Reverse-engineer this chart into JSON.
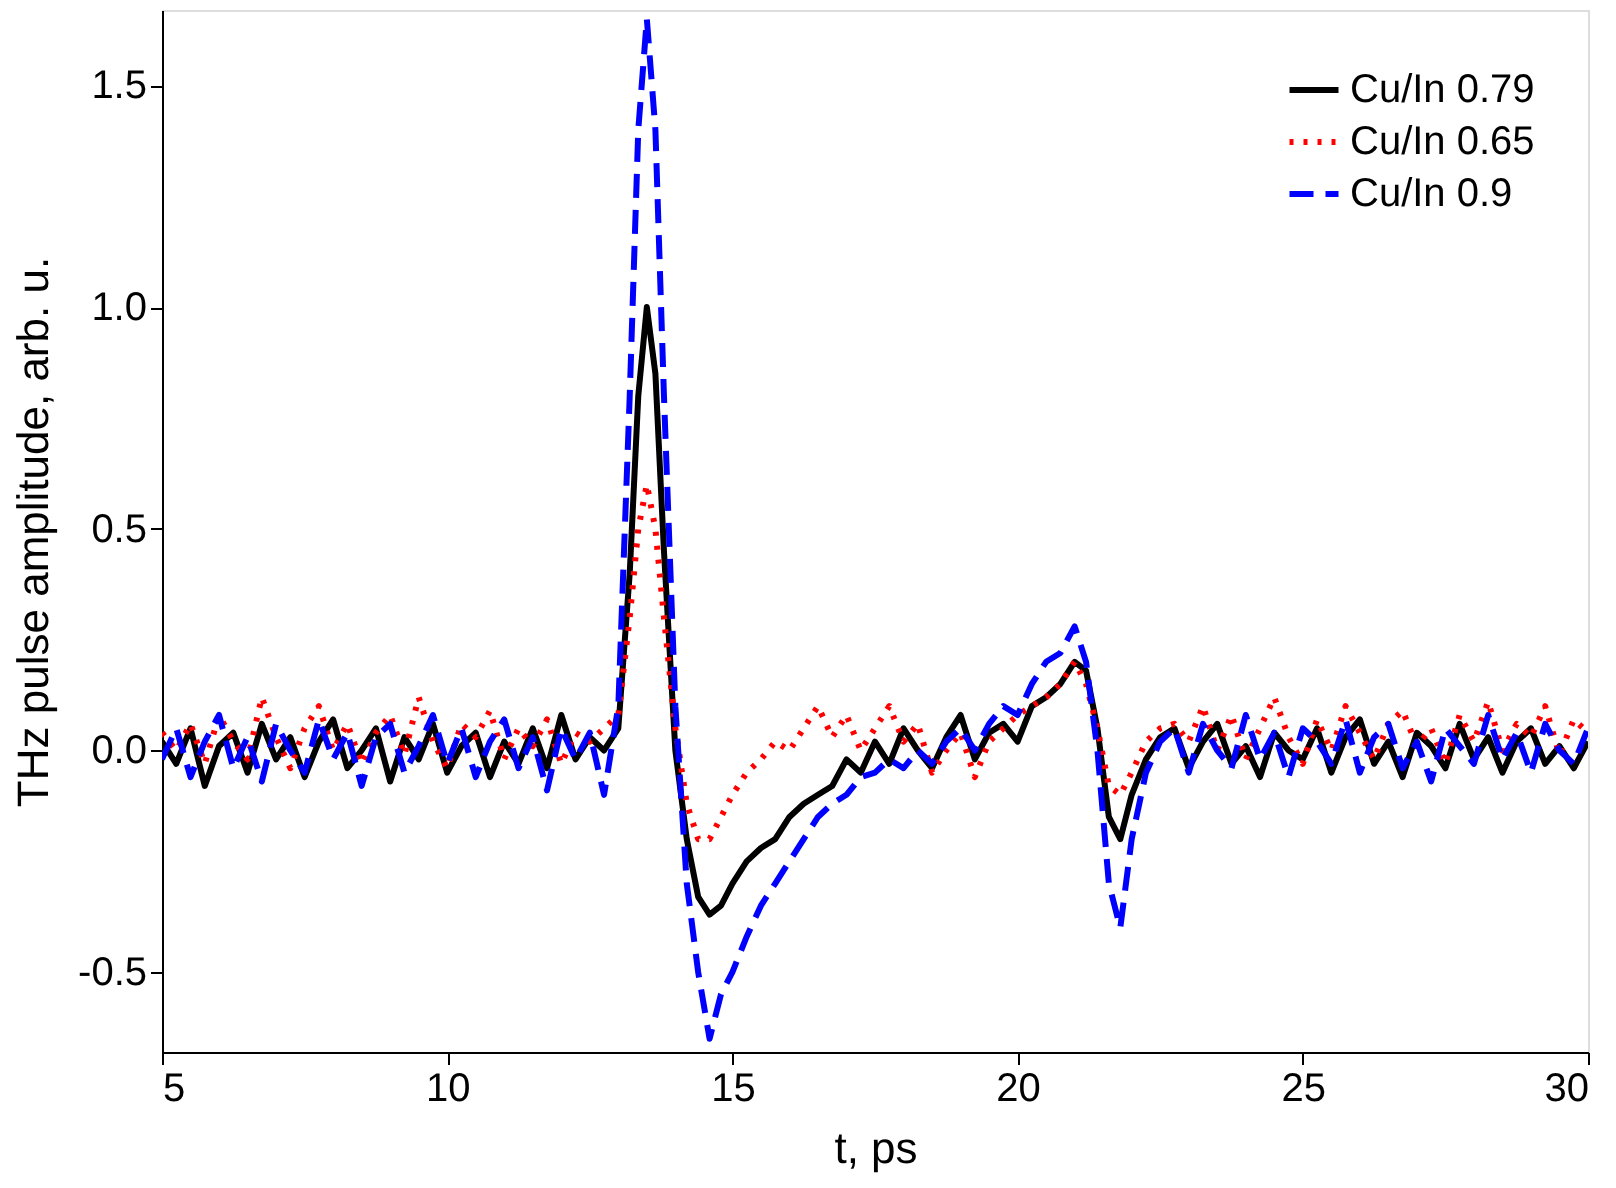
{
  "chart_data": {
    "type": "line",
    "xlabel": "t, ps",
    "ylabel": "THz pulse amplitude, arb. u.",
    "x": [
      5,
      5.25,
      5.5,
      5.75,
      6,
      6.25,
      6.5,
      6.75,
      7,
      7.25,
      7.5,
      7.75,
      8,
      8.25,
      8.5,
      8.75,
      9,
      9.25,
      9.5,
      9.75,
      10,
      10.25,
      10.5,
      10.75,
      11,
      11.25,
      11.5,
      11.75,
      12,
      12.25,
      12.5,
      12.75,
      13.0,
      13.2,
      13.35,
      13.5,
      13.65,
      13.8,
      14.0,
      14.2,
      14.4,
      14.6,
      14.8,
      15.0,
      15.25,
      15.5,
      15.75,
      16,
      16.25,
      16.5,
      16.75,
      17,
      17.25,
      17.5,
      17.75,
      18,
      18.25,
      18.5,
      18.75,
      19,
      19.25,
      19.5,
      19.75,
      20,
      20.25,
      20.5,
      20.75,
      21.0,
      21.2,
      21.4,
      21.6,
      21.8,
      22.0,
      22.25,
      22.5,
      22.75,
      23,
      23.25,
      23.5,
      23.75,
      24,
      24.25,
      24.5,
      24.75,
      25,
      25.25,
      25.5,
      25.75,
      26,
      26.25,
      26.5,
      26.75,
      27,
      27.25,
      27.5,
      27.75,
      28,
      28.25,
      28.5,
      28.75,
      29,
      29.25,
      29.5,
      29.75,
      30
    ],
    "series": [
      {
        "name": "Cu/In 0.79",
        "color": "#000000",
        "line_style": "solid",
        "values": [
          0.02,
          -0.03,
          0.05,
          -0.08,
          0.01,
          0.04,
          -0.05,
          0.06,
          -0.02,
          0.03,
          -0.06,
          0.02,
          0.07,
          -0.04,
          0.0,
          0.05,
          -0.07,
          0.03,
          -0.02,
          0.06,
          -0.05,
          0.01,
          0.04,
          -0.06,
          0.02,
          -0.03,
          0.05,
          -0.04,
          0.08,
          -0.02,
          0.03,
          0.0,
          0.05,
          0.4,
          0.8,
          1.0,
          0.85,
          0.45,
          0.0,
          -0.2,
          -0.33,
          -0.37,
          -0.35,
          -0.3,
          -0.25,
          -0.22,
          -0.2,
          -0.15,
          -0.12,
          -0.1,
          -0.08,
          -0.02,
          -0.05,
          0.02,
          -0.03,
          0.05,
          0.0,
          -0.04,
          0.03,
          0.08,
          -0.02,
          0.04,
          0.06,
          0.02,
          0.1,
          0.12,
          0.15,
          0.2,
          0.18,
          0.05,
          -0.15,
          -0.2,
          -0.1,
          -0.02,
          0.03,
          0.05,
          -0.04,
          0.02,
          0.06,
          -0.03,
          0.01,
          -0.06,
          0.04,
          0.0,
          -0.02,
          0.05,
          -0.05,
          0.03,
          0.07,
          -0.03,
          0.02,
          -0.06,
          0.04,
          0.01,
          -0.04,
          0.06,
          -0.02,
          0.03,
          -0.05,
          0.02,
          0.05,
          -0.03,
          0.01,
          -0.04,
          0.02
        ]
      },
      {
        "name": "Cu/In 0.65",
        "color": "#ff0000",
        "line_style": "dotted",
        "values": [
          0.04,
          0.0,
          0.06,
          -0.03,
          0.08,
          0.02,
          -0.02,
          0.12,
          0.03,
          -0.04,
          0.05,
          0.1,
          0.0,
          0.06,
          -0.03,
          0.04,
          0.08,
          -0.01,
          0.12,
          0.02,
          -0.04,
          0.06,
          0.03,
          0.09,
          -0.02,
          0.05,
          0.01,
          0.07,
          -0.03,
          0.04,
          0.02,
          0.05,
          0.08,
          0.3,
          0.5,
          0.6,
          0.5,
          0.3,
          0.05,
          -0.12,
          -0.2,
          -0.2,
          -0.15,
          -0.1,
          -0.05,
          -0.02,
          0.02,
          0.0,
          0.05,
          0.1,
          0.03,
          0.08,
          0.0,
          0.05,
          0.1,
          0.02,
          0.06,
          -0.05,
          0.0,
          0.04,
          -0.06,
          0.02,
          0.05,
          0.08,
          0.1,
          0.12,
          0.15,
          0.2,
          0.15,
          0.05,
          -0.08,
          -0.1,
          -0.05,
          0.02,
          0.05,
          0.06,
          0.02,
          0.1,
          0.0,
          0.08,
          -0.02,
          0.05,
          0.12,
          0.03,
          -0.03,
          0.07,
          0.0,
          0.1,
          0.04,
          -0.02,
          0.06,
          0.09,
          0.01,
          0.05,
          -0.03,
          0.08,
          0.02,
          0.11,
          0.0,
          0.06,
          0.03,
          0.1,
          -0.01,
          0.07,
          0.04
        ]
      },
      {
        "name": "Cu/In 0.9",
        "color": "#0000ff",
        "line_style": "dashed",
        "values": [
          -0.02,
          0.05,
          -0.06,
          0.02,
          0.08,
          -0.04,
          0.03,
          -0.07,
          0.06,
          0.0,
          -0.05,
          0.07,
          -0.02,
          0.04,
          -0.08,
          0.03,
          0.06,
          -0.05,
          0.01,
          0.08,
          -0.03,
          0.05,
          -0.06,
          0.02,
          0.07,
          -0.04,
          0.03,
          -0.09,
          0.05,
          -0.02,
          0.04,
          -0.1,
          0.1,
          0.8,
          1.4,
          1.65,
          1.4,
          0.8,
          0.1,
          -0.3,
          -0.5,
          -0.65,
          -0.55,
          -0.5,
          -0.42,
          -0.35,
          -0.3,
          -0.25,
          -0.2,
          -0.15,
          -0.12,
          -0.1,
          -0.06,
          -0.05,
          -0.02,
          -0.04,
          0.0,
          -0.03,
          0.02,
          0.05,
          0.0,
          0.06,
          0.1,
          0.08,
          0.15,
          0.2,
          0.22,
          0.28,
          0.2,
          0.0,
          -0.3,
          -0.4,
          -0.2,
          -0.05,
          0.02,
          0.05,
          -0.05,
          0.06,
          0.0,
          -0.04,
          0.08,
          -0.02,
          0.04,
          -0.06,
          0.05,
          0.02,
          -0.03,
          0.07,
          -0.05,
          0.03,
          0.06,
          -0.04,
          0.02,
          -0.07,
          0.05,
          0.01,
          -0.03,
          0.08,
          -0.02,
          0.04,
          -0.05,
          0.06,
          0.0,
          -0.03,
          0.05
        ]
      }
    ],
    "xlim": [
      5,
      30
    ],
    "xticks": [
      5,
      10,
      15,
      20,
      25,
      30
    ],
    "ylim": [
      -0.68,
      1.67
    ],
    "yticks": [
      {
        "value": -0.5,
        "label": "-0.5"
      },
      {
        "value": 0,
        "label": "0.0"
      },
      {
        "value": 0.5,
        "label": "0.5"
      },
      {
        "value": 1.0,
        "label": "1.0"
      },
      {
        "value": 1.5,
        "label": "1.5"
      }
    ],
    "grid": false,
    "legend": "top right"
  }
}
